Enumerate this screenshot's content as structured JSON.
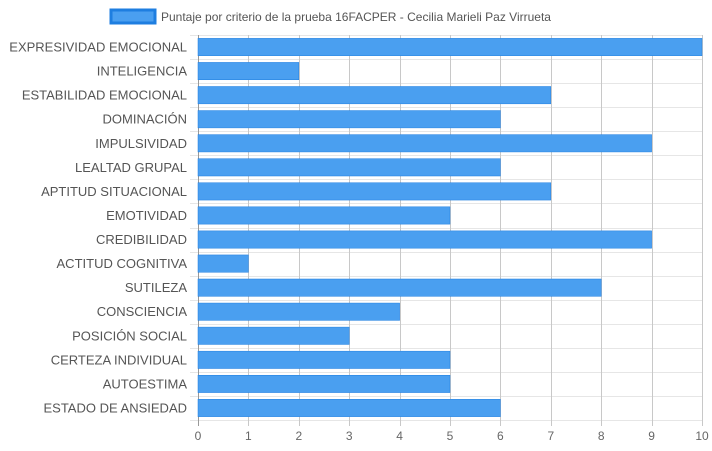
{
  "chart_data": {
    "type": "bar",
    "orientation": "horizontal",
    "categories": [
      "EXPRESIVIDAD EMOCIONAL",
      "INTELIGENCIA",
      "ESTABILIDAD EMOCIONAL",
      "DOMINACIÓN",
      "IMPULSIVIDAD",
      "LEALTAD GRUPAL",
      "APTITUD SITUACIONAL",
      "EMOTIVIDAD",
      "CREDIBILIDAD",
      "ACTITUD COGNITIVA",
      "SUTILEZA",
      "CONSCIENCIA",
      "POSICIÓN SOCIAL",
      "CERTEZA INDIVIDUAL",
      "AUTOESTIMA",
      "ESTADO DE ANSIEDAD"
    ],
    "series": [
      {
        "name": "Puntaje por criterio de la prueba 16FACPER - Cecilia Marieli Paz Virrueta",
        "values": [
          10,
          2,
          7,
          6,
          9,
          6,
          7,
          5,
          9,
          1,
          8,
          4,
          3,
          5,
          5,
          6
        ],
        "color": "#4a9ff0",
        "border_color": "#1e7ee0"
      }
    ],
    "xlim": [
      0,
      10
    ],
    "x_ticks": [
      0,
      1,
      2,
      3,
      4,
      5,
      6,
      7,
      8,
      9,
      10
    ],
    "grid": true,
    "legend_position": "top"
  }
}
